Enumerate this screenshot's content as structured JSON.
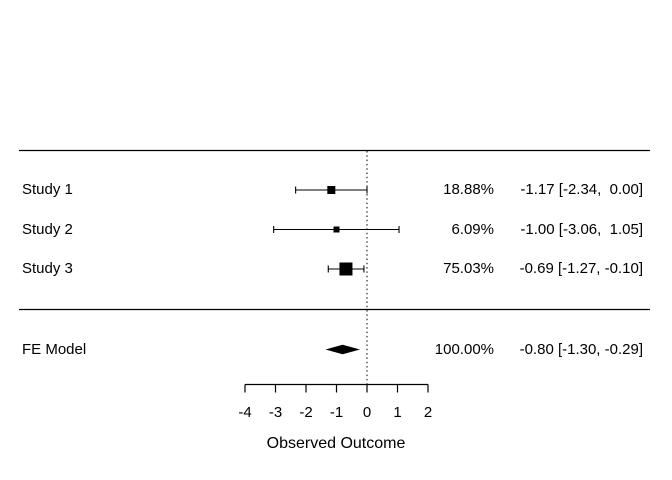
{
  "chart_data": {
    "type": "scatter",
    "subtype": "forest-plot",
    "title": "",
    "xlabel": "Observed Outcome",
    "xlim": [
      -4,
      2
    ],
    "xticks": [
      -4,
      -3,
      -2,
      -1,
      0,
      1,
      2
    ],
    "reference_line_x": 0,
    "grid": false,
    "rows": [
      {
        "label": "Study 1",
        "weight_label": "18.88%",
        "weight_pct": 18.88,
        "estimate": -1.17,
        "ci_low": -2.34,
        "ci_high": 0.0,
        "estimate_label": "-1.17 [-2.34,  0.00]",
        "marker": "square",
        "marker_size_px": 8
      },
      {
        "label": "Study 2",
        "weight_label": "6.09%",
        "weight_pct": 6.09,
        "estimate": -1.0,
        "ci_low": -3.06,
        "ci_high": 1.05,
        "estimate_label": "-1.00 [-3.06,  1.05]",
        "marker": "square",
        "marker_size_px": 6
      },
      {
        "label": "Study 3",
        "weight_label": "75.03%",
        "weight_pct": 75.03,
        "estimate": -0.69,
        "ci_low": -1.27,
        "ci_high": -0.1,
        "estimate_label": "-0.69 [-1.27, -0.10]",
        "marker": "square",
        "marker_size_px": 13
      }
    ],
    "summary_row": {
      "label": "FE Model",
      "weight_label": "100.00%",
      "weight_pct": 100.0,
      "estimate": -0.8,
      "ci_low": -1.3,
      "ci_high": -0.29,
      "estimate_label": "-0.80 [-1.30, -0.29]",
      "marker": "diamond"
    }
  },
  "colors": {
    "foreground": "#000000",
    "background": "#ffffff"
  }
}
